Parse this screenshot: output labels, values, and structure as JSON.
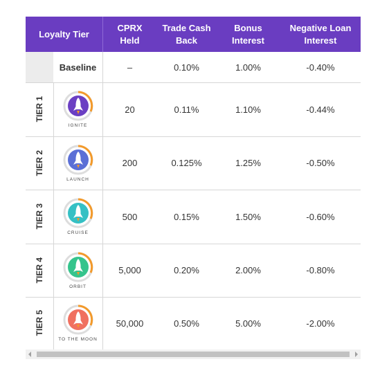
{
  "table": {
    "header": [
      "Loyalty Tier",
      "CPRX Held",
      "Trade Cash Back",
      "Bonus Interest",
      "Negative Loan Interest"
    ],
    "baseline": {
      "label": "Baseline",
      "cells": [
        "–",
        "0.10%",
        "1.00%",
        "-0.40%"
      ]
    },
    "rows": [
      {
        "tier": "TIER 1",
        "badge": "IGNITE",
        "cells": [
          "20",
          "0.11%",
          "1.10%",
          "-0.44%"
        ]
      },
      {
        "tier": "TIER 2",
        "badge": "LAUNCH",
        "cells": [
          "200",
          "0.125%",
          "1.25%",
          "-0.50%"
        ]
      },
      {
        "tier": "TIER 3",
        "badge": "CRUISE",
        "cells": [
          "500",
          "0.15%",
          "1.50%",
          "-0.60%"
        ]
      },
      {
        "tier": "TIER 4",
        "badge": "ORBIT",
        "cells": [
          "5,000",
          "0.20%",
          "2.00%",
          "-0.80%"
        ]
      },
      {
        "tier": "TIER 5",
        "badge": "TO THE MOON",
        "cells": [
          "50,000",
          "0.50%",
          "5.00%",
          "-2.00%"
        ]
      }
    ]
  }
}
